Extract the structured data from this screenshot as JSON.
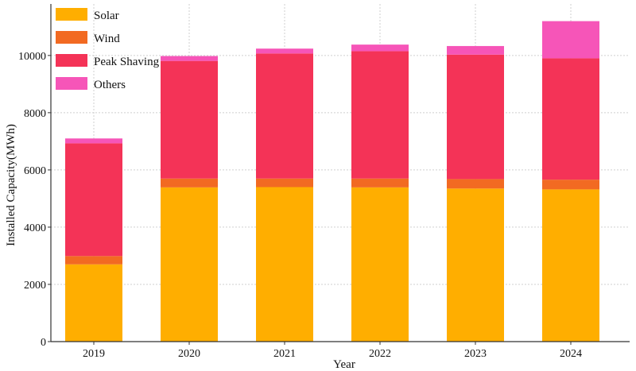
{
  "chart_data": {
    "type": "bar",
    "stacked": true,
    "title": "",
    "xlabel": "Year",
    "ylabel": "Installed Capacity(MWh)",
    "ylim": [
      0,
      11800
    ],
    "yticks": [
      0,
      2000,
      4000,
      6000,
      8000,
      10000
    ],
    "grid": true,
    "legend_position": "top-left",
    "categories": [
      "2019",
      "2020",
      "2021",
      "2022",
      "2023",
      "2024"
    ],
    "series": [
      {
        "name": "Solar",
        "color": "#FFAE00",
        "values": [
          2700,
          5390,
          5400,
          5390,
          5350,
          5320
        ]
      },
      {
        "name": "Wind",
        "color": "#F26A22",
        "values": [
          290,
          310,
          300,
          310,
          330,
          340
        ]
      },
      {
        "name": "Peak Shaving",
        "color": "#F43357",
        "values": [
          3940,
          4110,
          4370,
          4450,
          4350,
          4240
        ]
      },
      {
        "name": "Others",
        "color": "#F655B8",
        "values": [
          170,
          170,
          170,
          230,
          300,
          1300
        ]
      }
    ]
  }
}
